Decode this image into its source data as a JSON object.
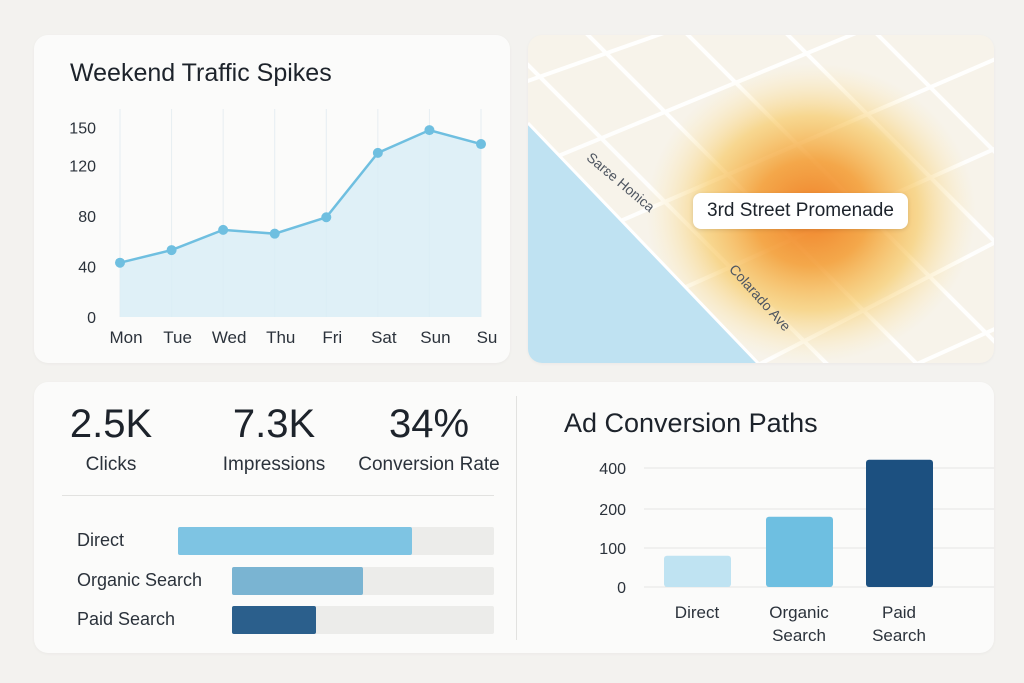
{
  "colors": {
    "line": "#6fbfe0",
    "area": "#d9edf6",
    "bar_light": "#bfe3f2",
    "bar_mid": "#6ebfe1",
    "bar_dark": "#1c5080",
    "channel_direct": "#7ec4e3",
    "channel_organic": "#7ab4d2",
    "channel_paid": "#2b5f8c"
  },
  "traffic_chart": {
    "title": "Weekend Traffic Spikes"
  },
  "map": {
    "label": "3rd Street Promenade",
    "streets": [
      "Sarɛe Honica",
      "Colarado Ave"
    ]
  },
  "kpis": [
    {
      "value": "2.5K",
      "label": "Clicks"
    },
    {
      "value": "7.3K",
      "label": "Impressions"
    },
    {
      "value": "34%",
      "label": "Conversion Rate"
    }
  ],
  "channels": [
    {
      "name": "Direct",
      "share": 0.74,
      "color": "channel_direct"
    },
    {
      "name": "Organic Search",
      "share": 0.5,
      "color": "channel_organic"
    },
    {
      "name": "Paid Search",
      "share": 0.32,
      "color": "channel_paid"
    }
  ],
  "conversion_chart": {
    "title": "Ad Conversion Paths"
  },
  "chart_data": [
    {
      "type": "area",
      "title": "Weekend Traffic Spikes",
      "categories": [
        "Mon",
        "Tue",
        "Wed",
        "Thu",
        "Fri",
        "Sat",
        "Sun",
        "Su"
      ],
      "values": [
        43,
        53,
        69,
        66,
        79,
        130,
        148,
        137
      ],
      "yticks": [
        0,
        40,
        80,
        120,
        150
      ],
      "ylim": [
        0,
        160
      ],
      "xlabel": "",
      "ylabel": "",
      "grid": "vertical",
      "markers": true
    },
    {
      "type": "bar",
      "title": "Ad Conversion Paths",
      "categories": [
        "Direct",
        "Organic\nSearch",
        "Paid\nSearch"
      ],
      "values": [
        80,
        180,
        440
      ],
      "bar_colors": [
        "bar_light",
        "bar_mid",
        "bar_dark"
      ],
      "yticks": [
        0,
        100,
        200,
        400
      ],
      "xlabel": "",
      "ylabel": "",
      "grid": "horizontal"
    }
  ]
}
